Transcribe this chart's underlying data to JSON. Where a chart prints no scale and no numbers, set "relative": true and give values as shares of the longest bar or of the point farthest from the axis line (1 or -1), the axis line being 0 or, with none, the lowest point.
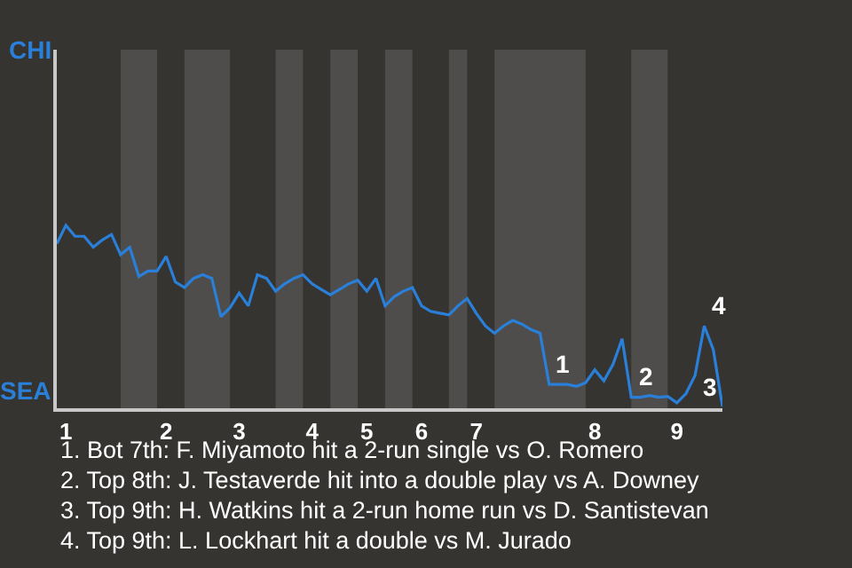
{
  "chart_data": {
    "type": "line",
    "relative": true,
    "categories": [
      null,
      "1",
      null,
      null,
      null,
      null,
      null,
      null,
      null,
      null,
      null,
      null,
      "2",
      null,
      null,
      null,
      null,
      null,
      null,
      null,
      "3",
      null,
      null,
      null,
      null,
      null,
      null,
      null,
      "4",
      null,
      null,
      null,
      null,
      null,
      "5",
      null,
      null,
      null,
      null,
      null,
      "6",
      null,
      null,
      null,
      null,
      null,
      "7",
      null,
      null,
      null,
      null,
      null,
      null,
      null,
      null,
      null,
      null,
      null,
      null,
      "8",
      null,
      null,
      null,
      null,
      null,
      null,
      null,
      null,
      "9",
      null,
      null,
      null,
      null,
      null
    ],
    "series": [
      {
        "color": "#2a7fd8",
        "values": [
          0.9,
          1,
          0.94,
          0.94,
          0.88,
          0.92,
          0.95,
          0.84,
          0.88,
          0.72,
          0.75,
          0.75,
          0.83,
          0.69,
          0.66,
          0.71,
          0.73,
          0.71,
          0.5,
          0.55,
          0.63,
          0.56,
          0.73,
          0.71,
          0.64,
          0.68,
          0.71,
          0.73,
          0.68,
          0.65,
          0.62,
          0.65,
          0.68,
          0.7,
          0.64,
          0.71,
          0.56,
          0.61,
          0.64,
          0.66,
          0.56,
          0.53,
          0.52,
          0.51,
          0.56,
          0.6,
          0.52,
          0.45,
          0.41,
          0.45,
          0.48,
          0.46,
          0.43,
          0.41,
          0.13,
          0.13,
          0.13,
          0.12,
          0.14,
          0.21,
          0.15,
          0.24,
          0.38,
          0.06,
          0.06,
          0.07,
          0.06,
          0.065,
          0.03,
          0.08,
          0.18,
          0.45,
          0.32,
          0.01
        ]
      }
    ],
    "marker": "none",
    "line_style": "solid",
    "annotations": [
      "CHI",
      "SEA",
      "1",
      "2",
      "3",
      "4",
      "1. Bot 7th: F. Miyamoto hit a 2-run single vs O. Romero",
      "2. Top 8th: J. Testaverde hit into a double play vs A. Downey",
      "3. Top 9th: H. Watkins hit a 2-run home run vs D. Santistevan",
      "4. Top 9th: L. Lockhart hit a double vs M. Jurado"
    ]
  }
}
